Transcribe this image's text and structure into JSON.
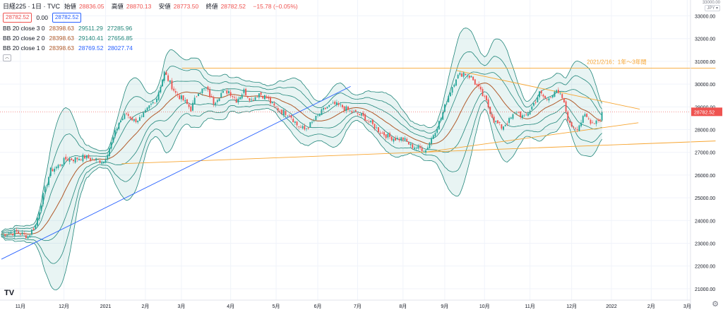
{
  "header": {
    "symbol": "日経225 · 1日 · TVC",
    "ohlc": [
      {
        "k": "始値",
        "v": "28836.05"
      },
      {
        "k": "高値",
        "v": "28870.13"
      },
      {
        "k": "安値",
        "v": "28773.50"
      },
      {
        "k": "終値",
        "v": "28782.52"
      },
      {
        "k": "",
        "v": "−15.78 (−0.05%)"
      }
    ],
    "price_red": "28782.52",
    "spread": "0.00",
    "price_blue": "28782.52"
  },
  "bb_rows": [
    {
      "name": "BB 20 close 3 0",
      "mid": "28398.63",
      "up": "29511.29",
      "lo": "27285.96"
    },
    {
      "name": "BB 20 close 2 0",
      "mid": "28398.63",
      "up": "29140.41",
      "lo": "27656.85"
    },
    {
      "name": "BB 20 close 1 0",
      "mid": "28398.63",
      "up": "28769.52",
      "lo": "28027.74"
    }
  ],
  "currency": {
    "unit": "JPY",
    "top": "33000.00"
  },
  "annotation": "2021/2/16：1年〜3年間",
  "last_price_label": "28782.52",
  "colors": {
    "up": "#26a69a",
    "down": "#ef5350",
    "mid": "#b05a2a",
    "band": "#21867a",
    "fill": "rgba(33,150,136,0.10)",
    "orange": "#f7a531",
    "blue": "#2962ff"
  },
  "chart_data": {
    "type": "candlestick",
    "ylim": [
      20500,
      33700
    ],
    "y_ticks": [
      21000,
      22000,
      23000,
      24000,
      25000,
      26000,
      27000,
      28000,
      29000,
      30000,
      31000,
      32000,
      33000
    ],
    "x_labels": [
      "11月",
      "12月",
      "2021",
      "2月",
      "3月",
      "4月",
      "5月",
      "6月",
      "7月",
      "8月",
      "9月",
      "10月",
      "11月",
      "12月",
      "2022",
      "2月",
      "3月"
    ],
    "x_label_day_index": [
      10,
      33,
      55,
      76,
      95,
      121,
      145,
      167,
      188,
      212,
      234,
      255,
      279,
      301,
      322,
      343,
      362
    ],
    "last_close": 28782.52,
    "close_anchors": [
      [
        0,
        23400
      ],
      [
        8,
        23500
      ],
      [
        14,
        23300
      ],
      [
        18,
        23800
      ],
      [
        22,
        25100
      ],
      [
        26,
        26200
      ],
      [
        30,
        26400
      ],
      [
        34,
        26700
      ],
      [
        38,
        26700
      ],
      [
        44,
        26800
      ],
      [
        48,
        26700
      ],
      [
        54,
        26600
      ],
      [
        58,
        27400
      ],
      [
        62,
        28300
      ],
      [
        66,
        28700
      ],
      [
        70,
        28400
      ],
      [
        74,
        28500
      ],
      [
        78,
        29000
      ],
      [
        82,
        29400
      ],
      [
        86,
        30500
      ],
      [
        88,
        30200
      ],
      [
        92,
        29600
      ],
      [
        96,
        29300
      ],
      [
        100,
        28900
      ],
      [
        104,
        29700
      ],
      [
        108,
        29800
      ],
      [
        112,
        29200
      ],
      [
        116,
        29600
      ],
      [
        120,
        29700
      ],
      [
        124,
        29300
      ],
      [
        128,
        29700
      ],
      [
        132,
        29300
      ],
      [
        136,
        29600
      ],
      [
        140,
        29400
      ],
      [
        144,
        29000
      ],
      [
        148,
        28800
      ],
      [
        152,
        28700
      ],
      [
        156,
        28200
      ],
      [
        160,
        28000
      ],
      [
        164,
        28300
      ],
      [
        168,
        28700
      ],
      [
        172,
        29000
      ],
      [
        176,
        29100
      ],
      [
        180,
        29000
      ],
      [
        184,
        28800
      ],
      [
        188,
        28700
      ],
      [
        192,
        28500
      ],
      [
        196,
        28200
      ],
      [
        200,
        27900
      ],
      [
        204,
        27700
      ],
      [
        208,
        27600
      ],
      [
        212,
        27600
      ],
      [
        216,
        27300
      ],
      [
        220,
        27200
      ],
      [
        224,
        27100
      ],
      [
        228,
        27800
      ],
      [
        232,
        28500
      ],
      [
        236,
        29500
      ],
      [
        240,
        30300
      ],
      [
        244,
        30500
      ],
      [
        248,
        30300
      ],
      [
        252,
        29800
      ],
      [
        256,
        29200
      ],
      [
        260,
        28400
      ],
      [
        264,
        28100
      ],
      [
        268,
        28400
      ],
      [
        272,
        28800
      ],
      [
        276,
        28500
      ],
      [
        280,
        29000
      ],
      [
        284,
        29600
      ],
      [
        288,
        29300
      ],
      [
        292,
        29700
      ],
      [
        296,
        29400
      ],
      [
        300,
        28200
      ],
      [
        304,
        28100
      ],
      [
        308,
        28600
      ],
      [
        312,
        28300
      ],
      [
        316,
        28500
      ],
      [
        317,
        28782.52
      ]
    ],
    "bands": [
      {
        "name": "BB 20 close 3 0",
        "k": 3
      },
      {
        "name": "BB 20 close 2 0",
        "k": 2
      },
      {
        "name": "BB 20 close 1 0",
        "k": 1
      }
    ],
    "trendlines": [
      {
        "color": "orange",
        "points": [
          [
            "2021/2/16",
            30700
          ],
          [
            "2022/3/31",
            30700
          ]
        ]
      },
      {
        "color": "orange",
        "points": [
          [
            "2021/1/01",
            26500
          ],
          [
            "2022/3/31",
            27500
          ]
        ]
      },
      {
        "color": "orange",
        "points": [
          [
            "2021/9/14",
            30600
          ],
          [
            "2022/2/01",
            28900
          ]
        ]
      },
      {
        "color": "orange",
        "points": [
          [
            "2021/8/20",
            27000
          ],
          [
            "2022/1/31",
            28300
          ]
        ]
      },
      {
        "color": "blue",
        "points": [
          [
            "2020/10/01",
            22300
          ],
          [
            "2021/6/25",
            29900
          ]
        ]
      }
    ],
    "grid": true
  }
}
